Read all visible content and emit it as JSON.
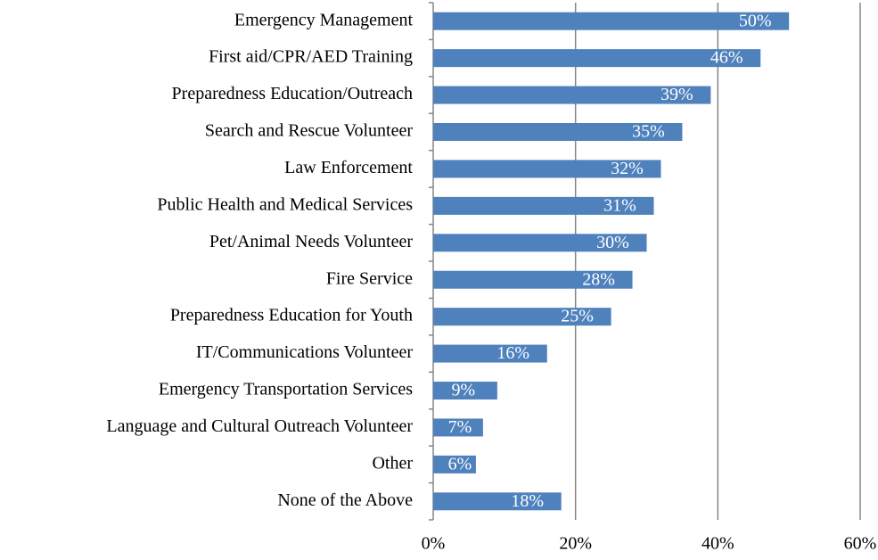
{
  "chart_data": {
    "type": "bar",
    "orientation": "horizontal",
    "categories": [
      "Emergency Management",
      "First aid/CPR/AED Training",
      "Preparedness Education/Outreach",
      "Search and Rescue Volunteer",
      "Law Enforcement",
      "Public Health and Medical Services",
      "Pet/Animal Needs Volunteer",
      "Fire Service",
      "Preparedness Education for Youth",
      "IT/Communications Volunteer",
      "Emergency Transportation Services",
      "Language and Cultural Outreach Volunteer",
      "Other",
      "None of the Above"
    ],
    "values": [
      50,
      46,
      39,
      35,
      32,
      31,
      30,
      28,
      25,
      16,
      9,
      7,
      6,
      18
    ],
    "value_labels": [
      "50%",
      "46%",
      "39%",
      "35%",
      "32%",
      "31%",
      "30%",
      "28%",
      "25%",
      "16%",
      "9%",
      "7%",
      "6%",
      "18%"
    ],
    "color": "#4f81bd",
    "xlim": [
      0,
      60
    ],
    "xticks": [
      {
        "value": 0,
        "label": "0%"
      },
      {
        "value": 20,
        "label": "20%"
      },
      {
        "value": 40,
        "label": "40%"
      },
      {
        "value": 60,
        "label": "60%"
      }
    ],
    "grid": true
  }
}
